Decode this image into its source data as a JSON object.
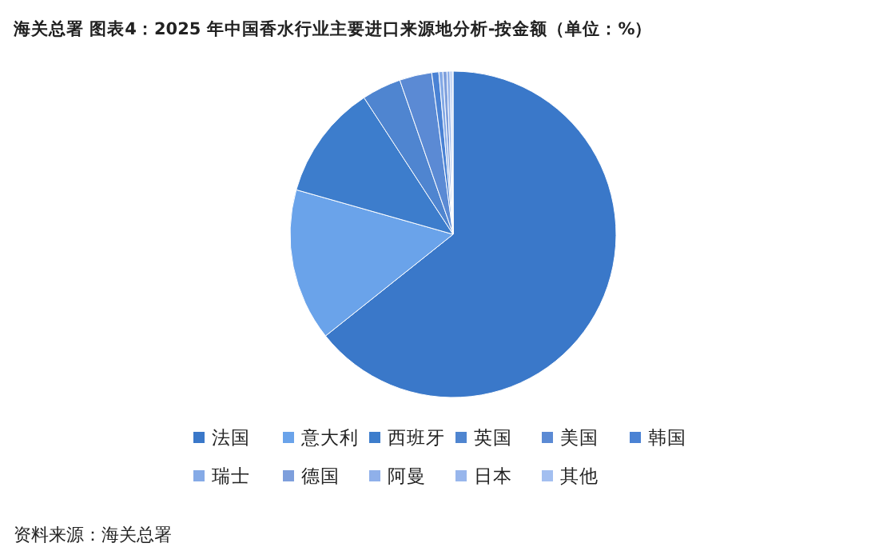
{
  "chart_data": {
    "type": "pie",
    "title": "海关总署  图表4：2025 年中国香水行业主要进口来源地分析-按金额（单位：%）",
    "categories": [
      "法国",
      "意大利",
      "西班牙",
      "英国",
      "美国",
      "韩国",
      "瑞士",
      "德国",
      "阿曼",
      "日本",
      "其他"
    ],
    "values": [
      64.3,
      15.1,
      11.4,
      3.9,
      3.2,
      0.7,
      0.4,
      0.4,
      0.3,
      0.2,
      0.1
    ],
    "colors": [
      "#3a78c9",
      "#6aa3ea",
      "#3d7dcc",
      "#4f85d0",
      "#5b8ad4",
      "#4a82d4",
      "#85aae6",
      "#7e9fdc",
      "#8fb0ea",
      "#98b6ec",
      "#a3bff0"
    ],
    "legend": "bottom",
    "annotations": [
      "资料来源：海关总署"
    ]
  }
}
